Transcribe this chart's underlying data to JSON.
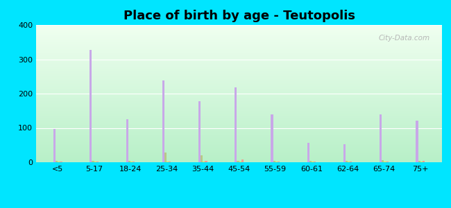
{
  "title": "Place of birth by age - Teutopolis",
  "categories": [
    "<5",
    "5-17",
    "18-24",
    "25-34",
    "35-44",
    "45-54",
    "55-59",
    "60-61",
    "62-64",
    "65-74",
    "75+"
  ],
  "series": {
    "Born in state of residence": [
      97,
      328,
      125,
      238,
      178,
      218,
      140,
      57,
      52,
      140,
      122
    ],
    "Born in other state": [
      4,
      4,
      4,
      28,
      20,
      4,
      4,
      4,
      4,
      6,
      4
    ],
    "Native, outside of US": [
      2,
      2,
      2,
      2,
      2,
      2,
      2,
      2,
      2,
      2,
      2
    ],
    "Foreign-born": [
      2,
      2,
      2,
      2,
      4,
      9,
      2,
      2,
      2,
      2,
      4
    ]
  },
  "colors": {
    "Born in state of residence": "#c8a8e8",
    "Born in other state": "#b8c888",
    "Native, outside of US": "#f0e050",
    "Foreign-born": "#f0a090"
  },
  "ylim": [
    0,
    400
  ],
  "yticks": [
    0,
    100,
    200,
    300,
    400
  ],
  "background_color": "#d8f5d8",
  "figure_bg": "#00e5ff",
  "bar_width": 0.06,
  "title_fontsize": 13,
  "watermark": "City-Data.com"
}
